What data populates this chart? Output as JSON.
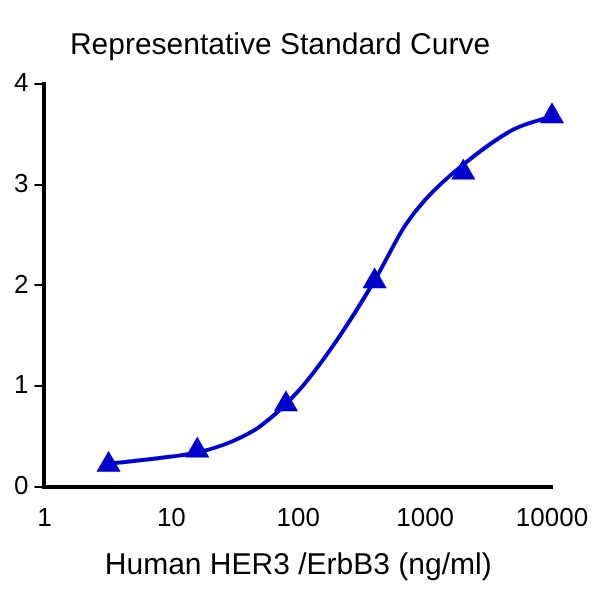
{
  "chart_data": {
    "type": "scatter",
    "title": "Representative Standard Curve",
    "xlabel": "Human HER3 /ErbB3 (ng/ml)",
    "log": "x",
    "grid": false,
    "legend": false,
    "xlim": [
      1,
      10000
    ],
    "xticks": [
      1,
      10,
      100,
      1000,
      10000
    ],
    "ylim": [
      0,
      4
    ],
    "yticks": [
      0,
      1,
      2,
      3,
      4
    ],
    "series": [
      {
        "color": "#0000cc",
        "marker": "triangle",
        "x": [
          3.2,
          16,
          80,
          400,
          2000,
          10000
        ],
        "values": [
          0.22,
          0.36,
          0.82,
          2.04,
          3.12,
          3.68
        ]
      },
      {
        "type": "line",
        "color": "#0000cc",
        "marker": "none",
        "line_style": "solid",
        "x": [
          3.2,
          10,
          16,
          30,
          50,
          100,
          200,
          400,
          700,
          1000,
          2000,
          5000,
          10000
        ],
        "values": [
          0.23,
          0.3,
          0.34,
          0.45,
          0.6,
          0.95,
          1.45,
          2.05,
          2.6,
          2.85,
          3.2,
          3.55,
          3.68
        ]
      }
    ]
  }
}
